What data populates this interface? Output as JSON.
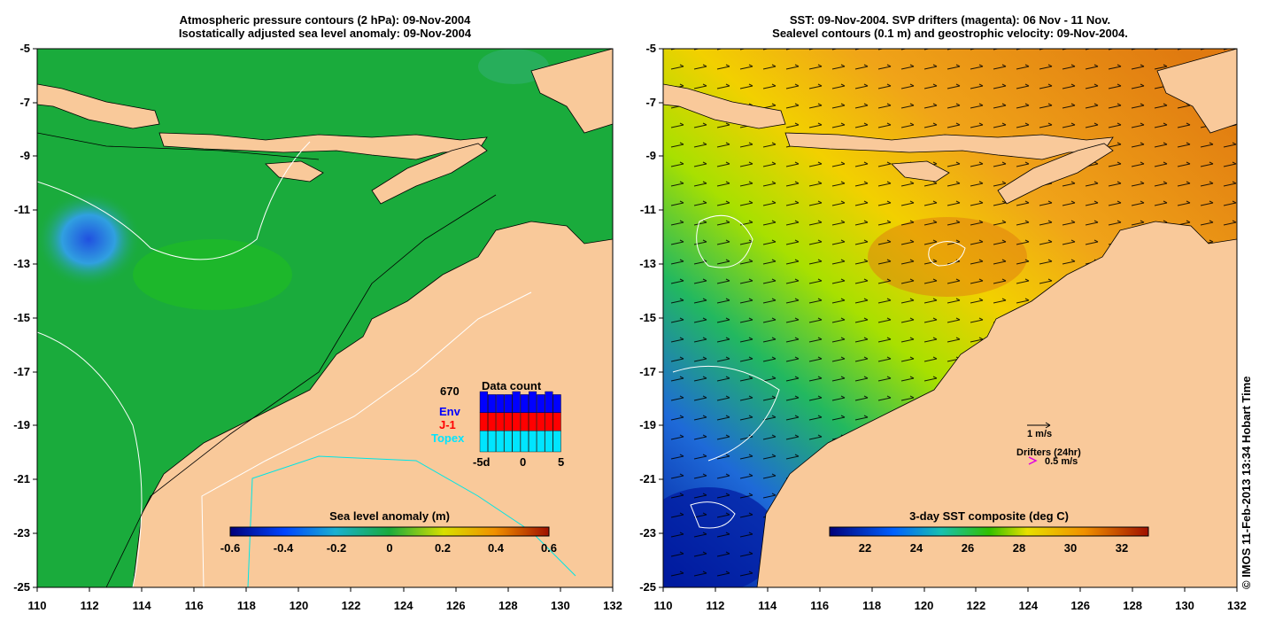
{
  "left_panel": {
    "title_line1": "Atmospheric pressure contours (2 hPa): 09-Nov-2004",
    "title_line2": "Isostatically adjusted sea level anomaly: 09-Nov-2004",
    "colorbar_title": "Sea level anomaly (m)",
    "colorbar_ticks": [
      "-0.6",
      "-0.4",
      "-0.2",
      "0",
      "0.2",
      "0.4",
      "0.6"
    ],
    "data_count": {
      "title": "Data count",
      "total": "670",
      "legend": [
        {
          "label": "Env",
          "color": "#0000ff"
        },
        {
          "label": "J-1",
          "color": "#ff0000"
        },
        {
          "label": "Topex",
          "color": "#00e5ff"
        }
      ],
      "x_ticks": [
        "-5d",
        "0",
        "5"
      ],
      "bars_topex": [
        0.35,
        0.35,
        0.35,
        0.35,
        0.35,
        0.35,
        0.35,
        0.35,
        0.35,
        0.35
      ],
      "bars_j1": [
        0.3,
        0.3,
        0.3,
        0.3,
        0.3,
        0.3,
        0.3,
        0.3,
        0.3,
        0.3
      ],
      "bars_env": [
        0.35,
        0.3,
        0.3,
        0.3,
        0.35,
        0.3,
        0.35,
        0.3,
        0.35,
        0.3
      ]
    }
  },
  "right_panel": {
    "title_line1": "SST: 09-Nov-2004. SVP drifters (magenta): 06 Nov - 11 Nov.",
    "title_line2": "Sealevel contours (0.1 m) and geostrophic velocity: 09-Nov-2004.",
    "colorbar_title": "3-day SST composite (deg C)",
    "colorbar_ticks": [
      "22",
      "24",
      "26",
      "28",
      "30",
      "32"
    ],
    "velocity_scale_label": "1 m/s",
    "drifters_label": "Drifters (24hr)",
    "drifters_scale": "0.5 m/s"
  },
  "axes": {
    "y_ticks": [
      "-5",
      "-7",
      "-9",
      "-11",
      "-13",
      "-15",
      "-17",
      "-19",
      "-21",
      "-23",
      "-25"
    ],
    "x_ticks": [
      "110",
      "112",
      "114",
      "116",
      "118",
      "120",
      "122",
      "124",
      "126",
      "128",
      "130",
      "132"
    ]
  },
  "side_text": "© IMOS 11-Feb-2013 13:34 Hobart Time",
  "colors": {
    "land": "#f9c99a",
    "ocean_left": "#1aab3c",
    "sst_warm": "#f0a020",
    "sst_cool": "#2060e0"
  }
}
